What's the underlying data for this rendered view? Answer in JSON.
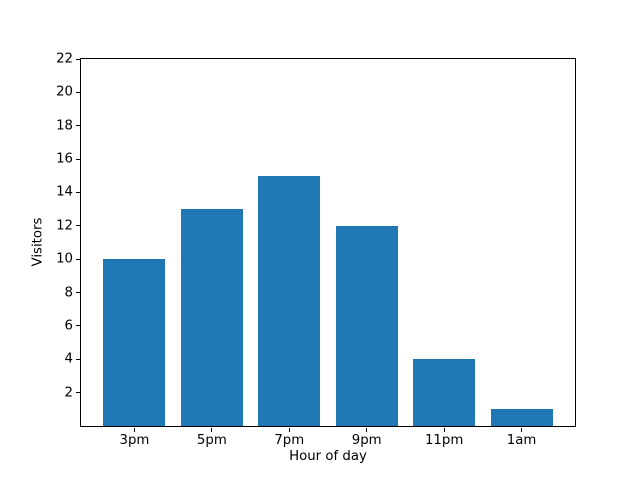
{
  "chart_data": {
    "type": "bar",
    "categories": [
      "3pm",
      "5pm",
      "7pm",
      "9pm",
      "11pm",
      "1am"
    ],
    "values": [
      10,
      13,
      15,
      12,
      4,
      1
    ],
    "title": "",
    "xlabel": "Hour of day",
    "ylabel": "Visitors",
    "ylim": [
      0,
      22
    ],
    "yticks": [
      2,
      4,
      6,
      8,
      10,
      12,
      14,
      16,
      18,
      20,
      22
    ],
    "bar_color": "#1f77b4",
    "bar_width_units": 0.8,
    "x_edge_pad_units": 0.69,
    "background_color": "#ffffff",
    "spine_color": "#000000",
    "grid": false,
    "legend": null
  }
}
